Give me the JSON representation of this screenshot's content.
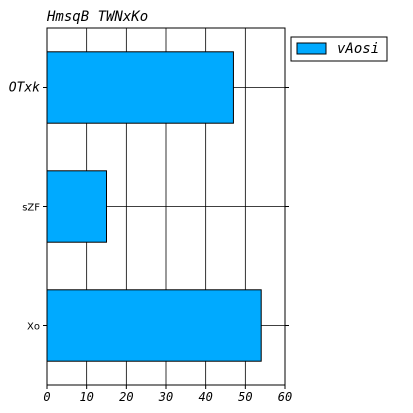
{
  "chart_data": {
    "type": "bar",
    "orientation": "horizontal",
    "title": "HmsqB TWNxKo",
    "categories": [
      "OTxk",
      "sZF",
      "Xo"
    ],
    "series": [
      {
        "name": "vAosi",
        "values": [
          47,
          15,
          54
        ]
      }
    ],
    "xlim": [
      0,
      60
    ],
    "xticks": [
      "0",
      "10",
      "20",
      "30",
      "40",
      "50",
      "60"
    ],
    "grid": true,
    "legend_position": "top-right outside",
    "colors": {
      "bar": "#00aaff",
      "edge": "#000000"
    }
  }
}
